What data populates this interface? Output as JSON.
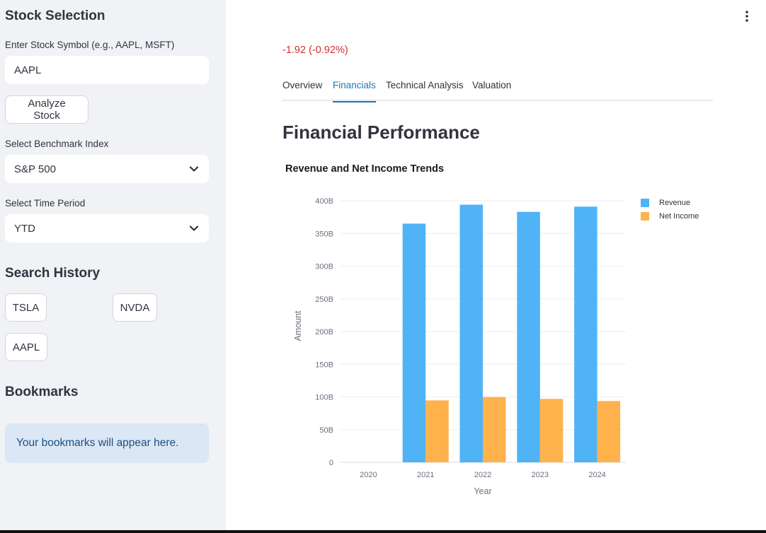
{
  "sidebar": {
    "title": "Stock Selection",
    "symbol_label": "Enter Stock Symbol (e.g., AAPL, MSFT)",
    "symbol_value": "AAPL",
    "analyze_button": "Analyze Stock",
    "benchmark_label": "Select Benchmark Index",
    "benchmark_value": "S&P 500",
    "period_label": "Select Time Period",
    "period_value": "YTD",
    "history_title": "Search History",
    "history": [
      "TSLA",
      "NVDA",
      "AAPL"
    ],
    "bookmarks_title": "Bookmarks",
    "bookmarks_info": "Your bookmarks will appear here."
  },
  "main": {
    "price_change": "-1.92 (-0.92%)",
    "tabs": [
      {
        "label": "Overview",
        "active": false
      },
      {
        "label": "Financials",
        "active": true
      },
      {
        "label": "Technical Analysis",
        "active": false
      },
      {
        "label": "Valuation",
        "active": false
      }
    ],
    "section_title": "Financial Performance"
  },
  "colors": {
    "revenue": "#4fb3f6",
    "net_income": "#ffb24c",
    "accent": "#1f77b4",
    "negative": "#d32f2f"
  },
  "chart_data": {
    "type": "bar",
    "title": "Revenue and Net Income Trends",
    "xlabel": "Year",
    "ylabel": "Amount",
    "categories": [
      "2020",
      "2021",
      "2022",
      "2023",
      "2024"
    ],
    "series": [
      {
        "name": "Revenue",
        "values": [
          0,
          365,
          394,
          383,
          391
        ]
      },
      {
        "name": "Net Income",
        "values": [
          0,
          94.7,
          99.8,
          97,
          93.7
        ]
      }
    ],
    "ylim": [
      0,
      400
    ],
    "yticks": [
      0,
      50,
      100,
      150,
      200,
      250,
      300,
      350,
      400
    ],
    "ytick_labels": [
      "0",
      "50B",
      "100B",
      "150B",
      "200B",
      "250B",
      "300B",
      "350B",
      "400B"
    ],
    "grid": true,
    "legend_position": "top-right"
  }
}
